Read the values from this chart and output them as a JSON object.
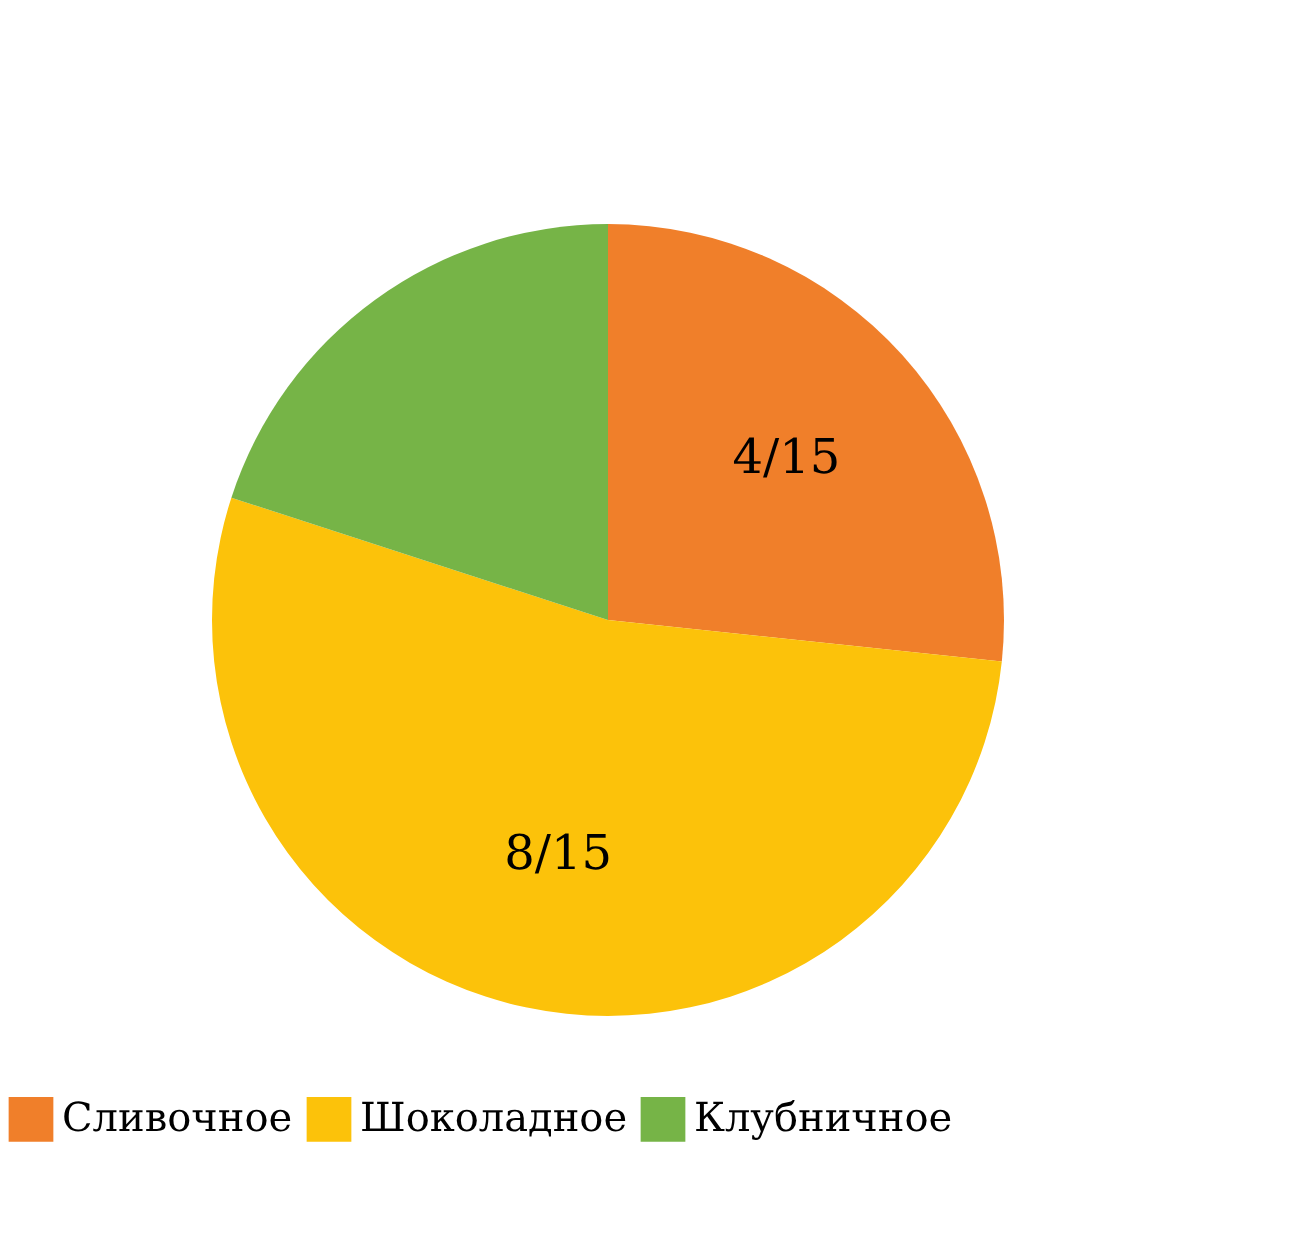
{
  "chart_data": {
    "type": "pie",
    "categories": [
      "Сливочное",
      "Шоколадное",
      "Клубничное"
    ],
    "values": [
      26.67,
      53.33,
      20
    ],
    "colors": [
      "#f07f2a",
      "#fcc20a",
      "#76b447"
    ],
    "value_labels": [
      "4/15",
      "8/15",
      null
    ],
    "legend": "bottom"
  }
}
